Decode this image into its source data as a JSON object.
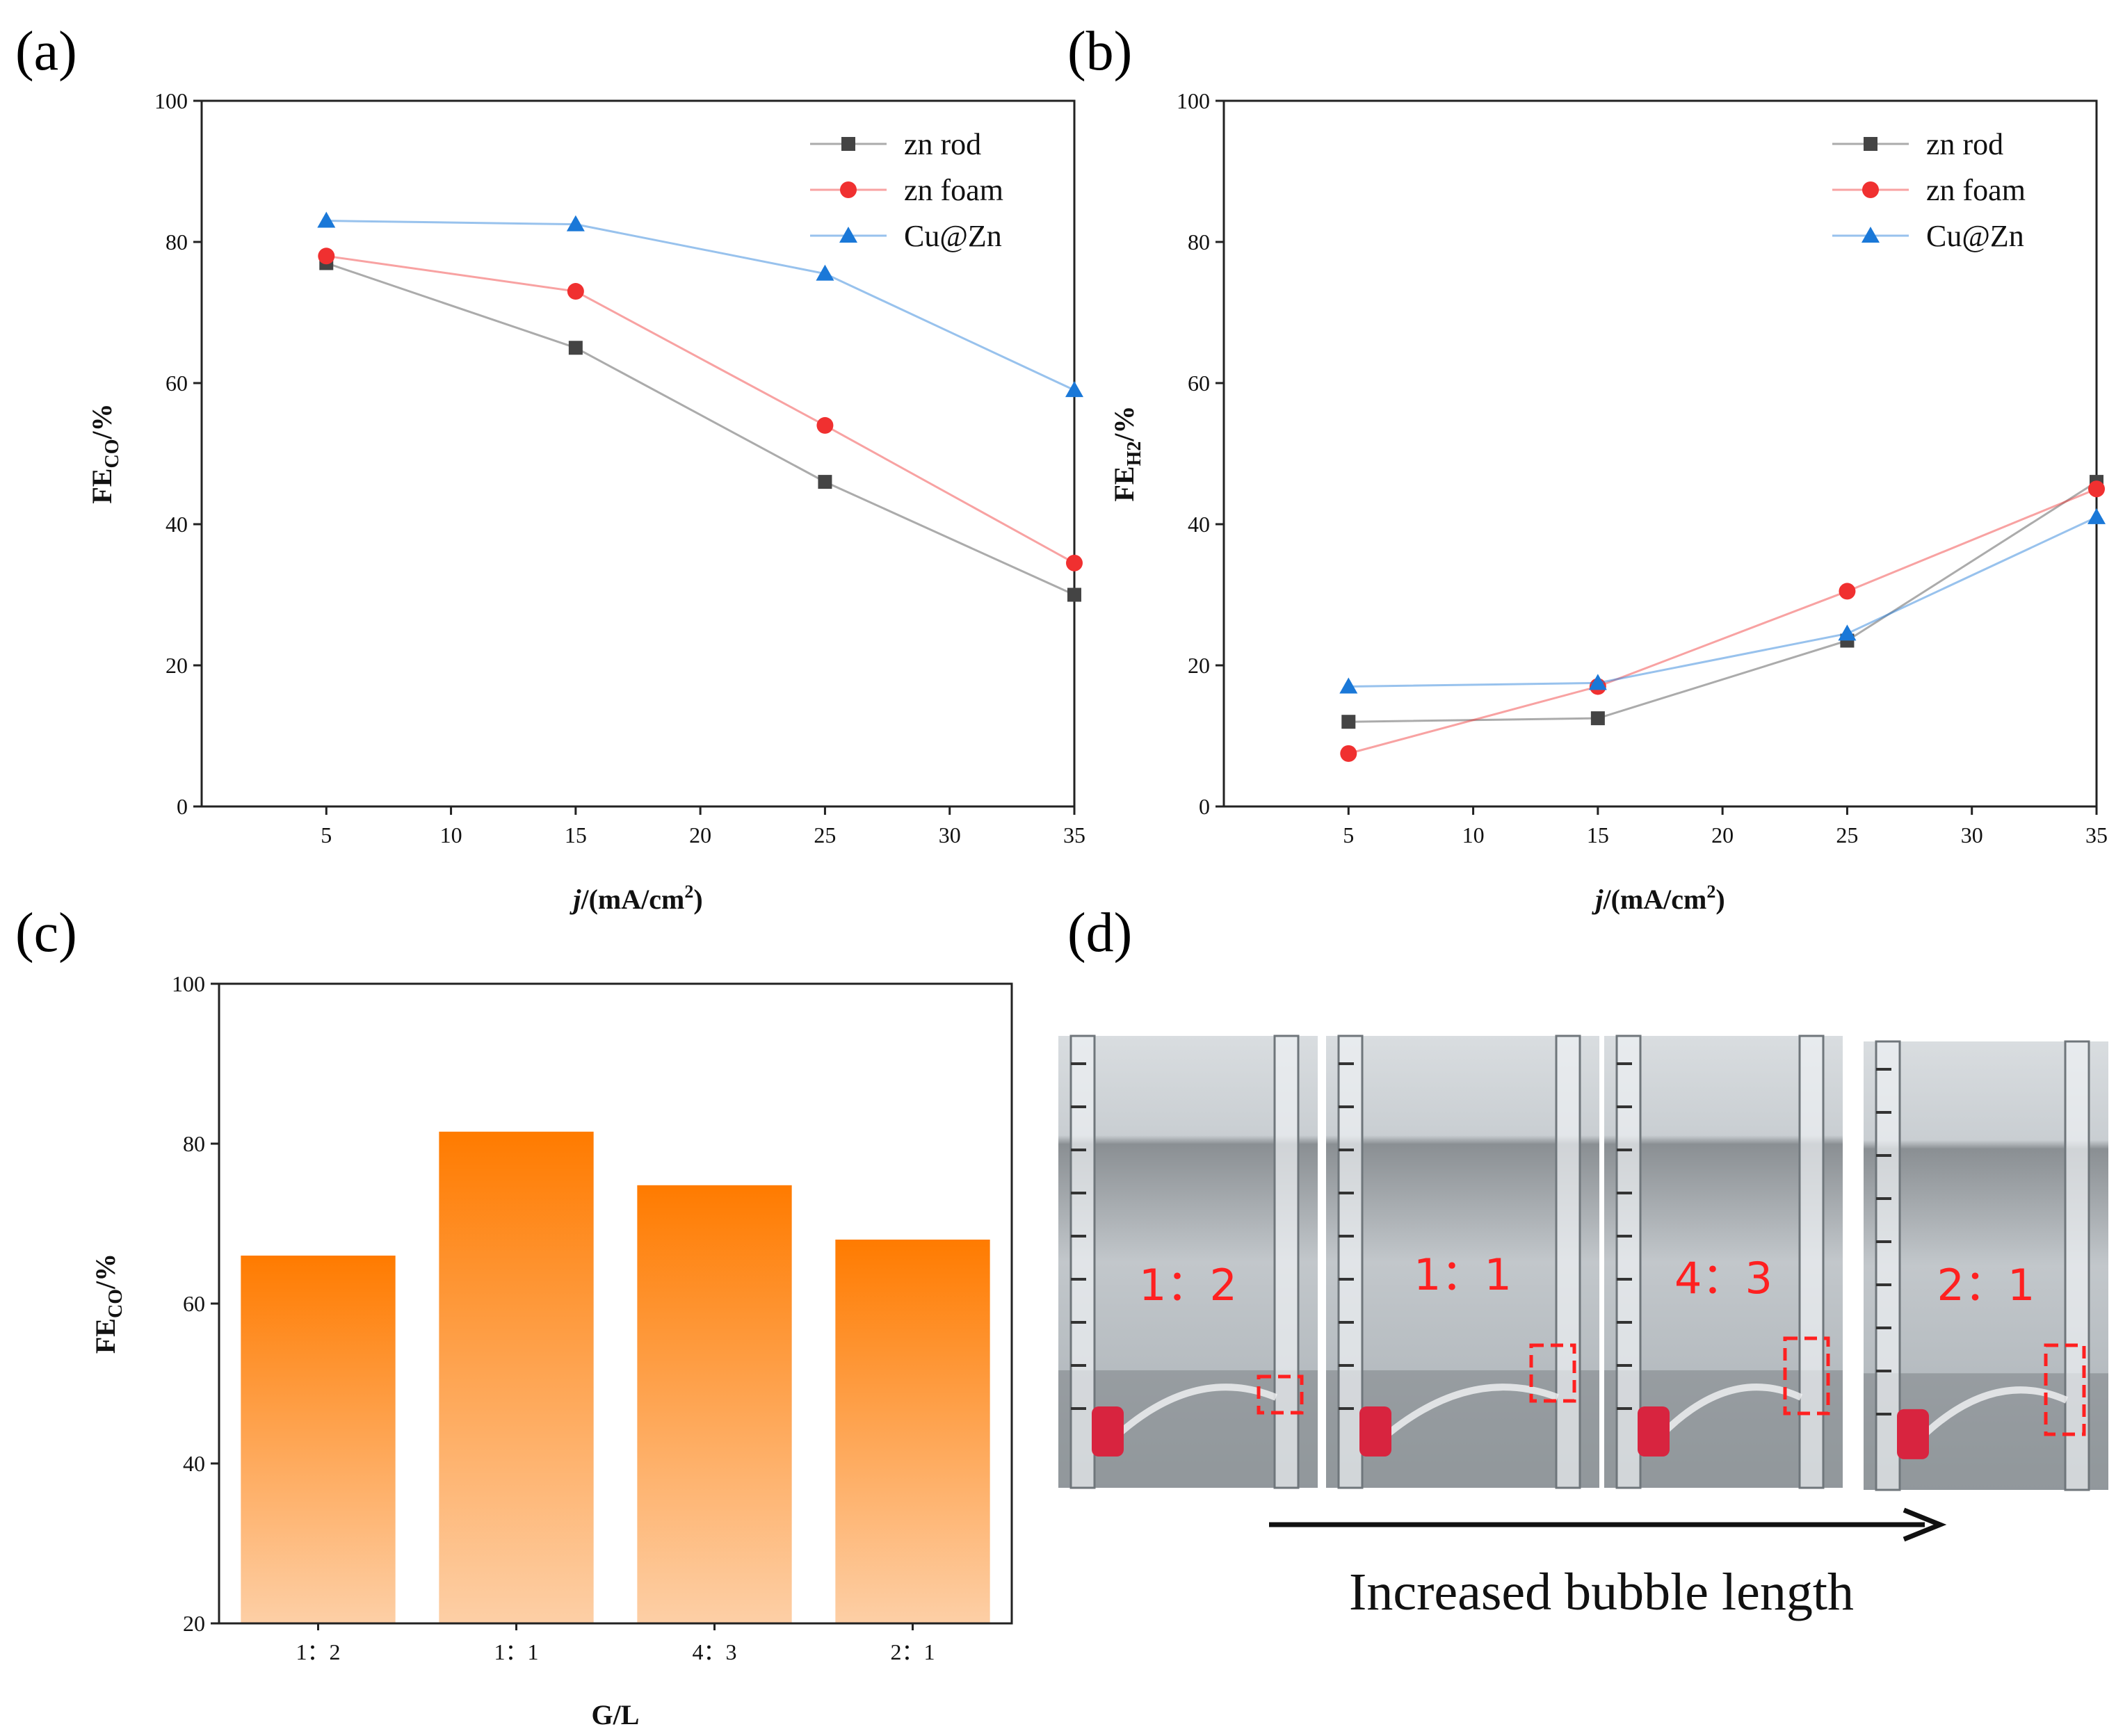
{
  "panels": {
    "a": {
      "label": "(a)"
    },
    "b": {
      "label": "(b)"
    },
    "c": {
      "label": "(c)"
    },
    "d": {
      "label": "(d)"
    }
  },
  "chart_data": [
    {
      "id": "a",
      "type": "line",
      "x": [
        5,
        15,
        25,
        35
      ],
      "xlim": [
        0,
        35
      ],
      "ylim": [
        0,
        100
      ],
      "xticks": [
        5,
        10,
        15,
        20,
        25,
        30,
        35
      ],
      "yticks": [
        0,
        20,
        40,
        60,
        80,
        100
      ],
      "ylabel_main": "FE",
      "ylabel_sub": "CO",
      "ylabel_unit": "/%",
      "xlabel_italic": "j",
      "xlabel_rest": "/(mA/cm",
      "xlabel_sup": "2",
      "xlabel_close": ")",
      "legend_position": "top-right",
      "series": [
        {
          "name": "zn rod",
          "values": [
            77,
            65,
            46,
            30
          ],
          "color": "#444444",
          "marker": "square"
        },
        {
          "name": "zn foam",
          "values": [
            78,
            73,
            54,
            34.5
          ],
          "color": "#f03030",
          "marker": "circle"
        },
        {
          "name": "Cu@Zn",
          "values": [
            83,
            82.5,
            75.5,
            59
          ],
          "color": "#1a78d8",
          "marker": "triangle"
        }
      ]
    },
    {
      "id": "b",
      "type": "line",
      "x": [
        5,
        15,
        25,
        35
      ],
      "xlim": [
        0,
        35
      ],
      "ylim": [
        0,
        100
      ],
      "xticks": [
        5,
        10,
        15,
        20,
        25,
        30,
        35
      ],
      "yticks": [
        0,
        20,
        40,
        60,
        80,
        100
      ],
      "ylabel_main": "FE",
      "ylabel_sub": "H2",
      "ylabel_unit": "/%",
      "xlabel_italic": "j",
      "xlabel_rest": "/(mA/cm",
      "xlabel_sup": "2",
      "xlabel_close": ")",
      "legend_position": "top-right",
      "series": [
        {
          "name": "zn rod",
          "values": [
            12,
            12.5,
            23.5,
            46
          ],
          "color": "#444444",
          "marker": "square"
        },
        {
          "name": "zn foam",
          "values": [
            7.5,
            17,
            30.5,
            45
          ],
          "color": "#f03030",
          "marker": "circle"
        },
        {
          "name": "Cu@Zn",
          "values": [
            17,
            17.5,
            24.5,
            41
          ],
          "color": "#1a78d8",
          "marker": "triangle"
        }
      ]
    },
    {
      "id": "c",
      "type": "bar",
      "categories": [
        "1：2",
        "1：1",
        "4：3",
        "2：1"
      ],
      "values": [
        66,
        81.5,
        74.8,
        68
      ],
      "ylim": [
        20,
        100
      ],
      "yticks": [
        20,
        40,
        60,
        80,
        100
      ],
      "ylabel_main": "FE",
      "ylabel_sub": "CO",
      "ylabel_unit": "/%",
      "xlabel": "G/L",
      "bar_color_top": "#ff7b00",
      "bar_color_bottom": "#fdcfa6"
    }
  ],
  "photos": {
    "ratios": [
      "1：2",
      "1：1",
      "4：3",
      "2：1"
    ],
    "caption": "Increased bubble length",
    "highlight_color": "#ff2020"
  }
}
